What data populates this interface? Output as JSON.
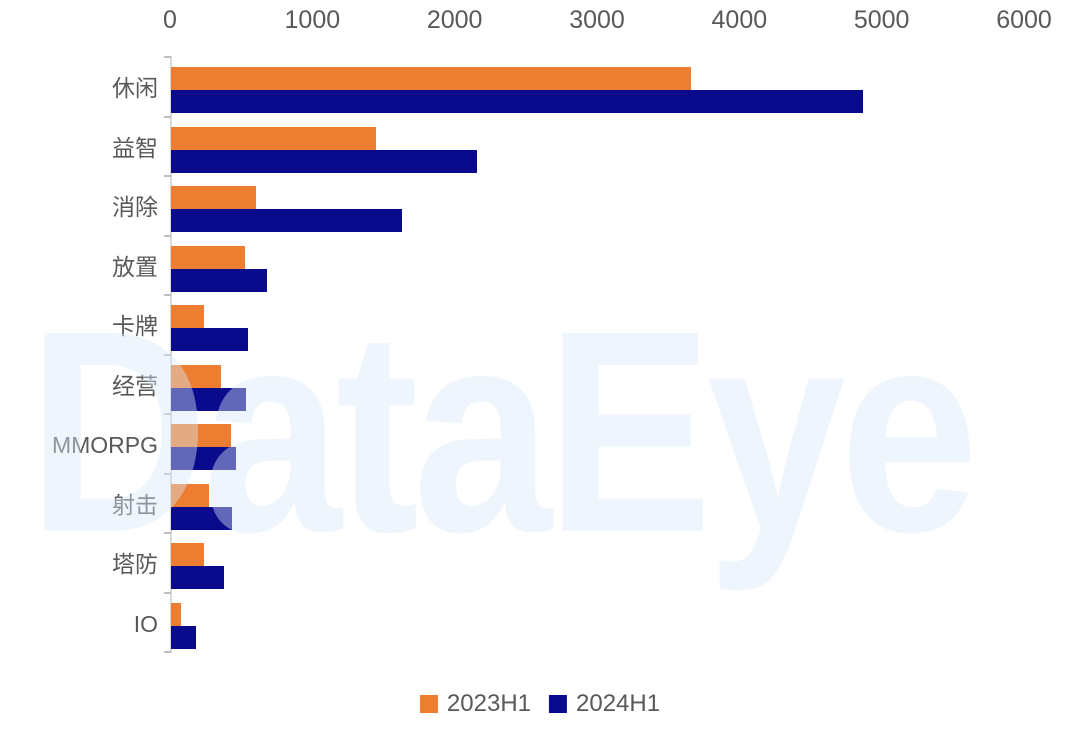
{
  "watermark": "DataEye",
  "chart_data": {
    "type": "bar",
    "orientation": "horizontal",
    "title": "",
    "xlabel": "",
    "ylabel": "",
    "categories": [
      "休闲",
      "益智",
      "消除",
      "放置",
      "卡牌",
      "经营",
      "MMORPG",
      "射击",
      "塔防",
      "IO"
    ],
    "series": [
      {
        "name": "2023H1",
        "color": "#ED7D31",
        "values": [
          3650,
          1440,
          600,
          520,
          230,
          350,
          420,
          265,
          230,
          70
        ]
      },
      {
        "name": "2024H1",
        "color": "#0A0A8C",
        "values": [
          4860,
          2150,
          1620,
          675,
          540,
          530,
          455,
          430,
          375,
          175
        ]
      }
    ],
    "xlim": [
      0,
      6000
    ],
    "x_ticks": [
      0,
      1000,
      2000,
      3000,
      4000,
      5000,
      6000
    ],
    "grid": "off",
    "legend_position": "bottom",
    "axis_color": "#D9D9D9",
    "tick_label_color": "#595959",
    "category_label_color": "#595959",
    "watermark_color": "#D9E8F8"
  }
}
